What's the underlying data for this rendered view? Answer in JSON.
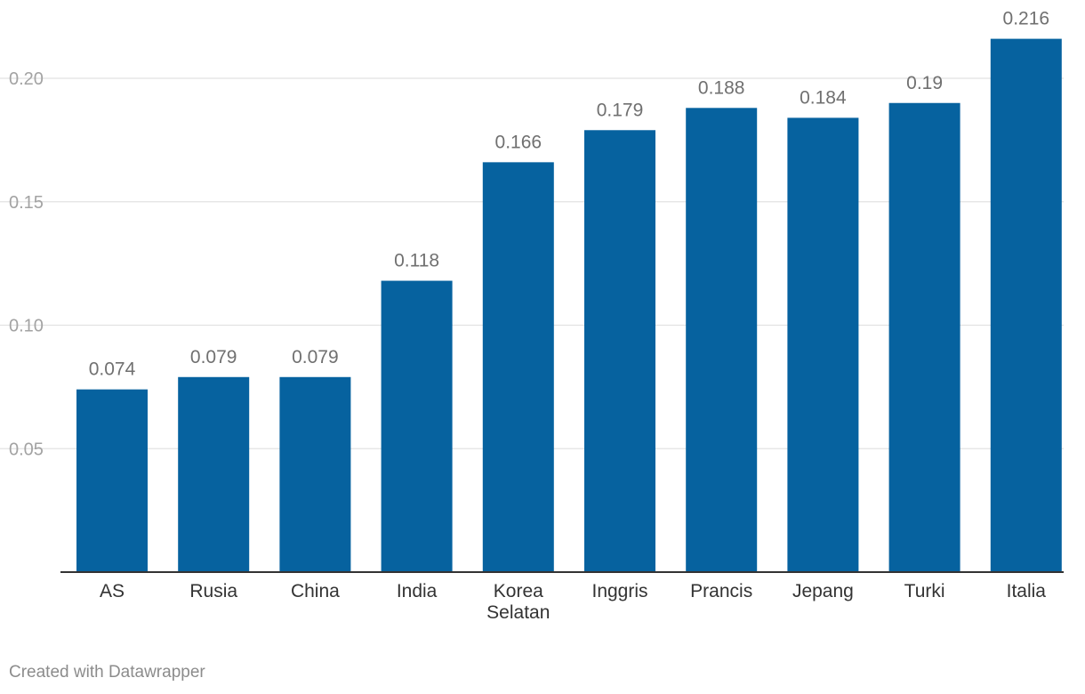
{
  "chart_data": {
    "type": "bar",
    "categories": [
      "AS",
      "Rusia",
      "China",
      "India",
      "Korea Selatan",
      "Inggris",
      "Prancis",
      "Jepang",
      "Turki",
      "Italia"
    ],
    "category_lines": [
      [
        "AS"
      ],
      [
        "Rusia"
      ],
      [
        "China"
      ],
      [
        "India"
      ],
      [
        "Korea",
        "Selatan"
      ],
      [
        "Inggris"
      ],
      [
        "Prancis"
      ],
      [
        "Jepang"
      ],
      [
        "Turki"
      ],
      [
        "Italia"
      ]
    ],
    "values": [
      0.074,
      0.079,
      0.079,
      0.118,
      0.166,
      0.179,
      0.188,
      0.184,
      0.19,
      0.216
    ],
    "value_labels": [
      "0.074",
      "0.079",
      "0.079",
      "0.118",
      "0.166",
      "0.179",
      "0.188",
      "0.184",
      "0.19",
      "0.216"
    ],
    "yticks": [
      0.05,
      0.1,
      0.15,
      0.2
    ],
    "ytick_labels": [
      "0.05",
      "0.10",
      "0.15",
      "0.20"
    ],
    "ylim": [
      0,
      0.2
    ],
    "bar_color": "#06629f",
    "grid": true,
    "title": "",
    "xlabel": "",
    "ylabel": ""
  },
  "footer": {
    "credit": "Created with Datawrapper"
  }
}
